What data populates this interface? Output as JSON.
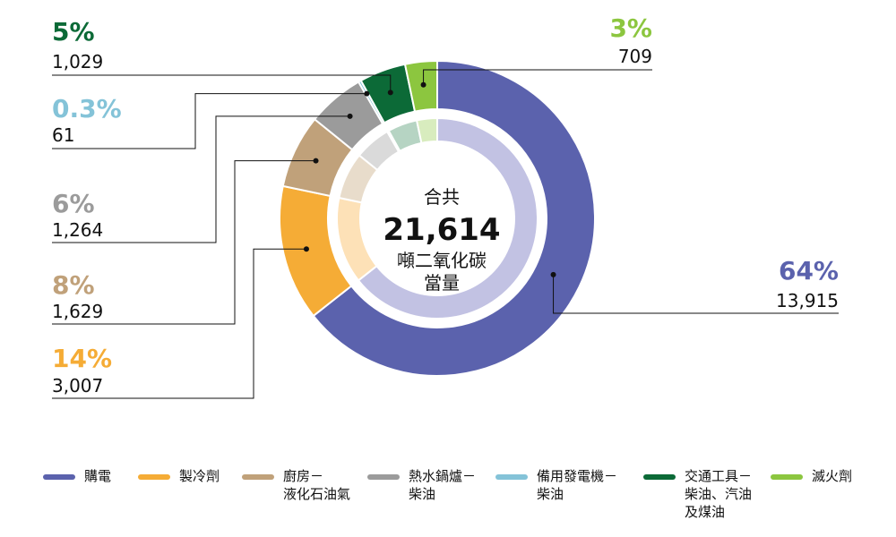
{
  "chart_data": {
    "type": "pie",
    "center": {
      "label_top": "合共",
      "total": "21,614",
      "label_bottom_1": "噸二氧化碳",
      "label_bottom_2": "當量"
    },
    "slices": [
      {
        "name": "購電",
        "value": 13915,
        "value_label": "13,915",
        "percent": "64%",
        "color": "#5b62ad",
        "inner_color": "#c2c2e3",
        "key": "purchased"
      },
      {
        "name": "製冷劑",
        "value": 3007,
        "value_label": "3,007",
        "percent": "14%",
        "color": "#f5ac36",
        "inner_color": "#fde1b7",
        "key": "refrigerant"
      },
      {
        "name": "廚房－\n液化石油氣",
        "value": 1629,
        "value_label": "1,629",
        "percent": "8%",
        "color": "#c0a17a",
        "inner_color": "#e8dccb",
        "key": "lpg"
      },
      {
        "name": "熱水鍋爐－\n柴油",
        "value": 1264,
        "value_label": "1,264",
        "percent": "6%",
        "color": "#9b9b9b",
        "inner_color": "#dadada",
        "key": "boiler"
      },
      {
        "name": "備用發電機－\n柴油",
        "value": 61,
        "value_label": "61",
        "percent": "0.3%",
        "color": "#84c3d8",
        "inner_color": "#cfe8f1",
        "key": "generator"
      },
      {
        "name": "交通工具－\n柴油、汽油\n及煤油",
        "value": 1029,
        "value_label": "1,029",
        "percent": "5%",
        "color": "#0c6a37",
        "inner_color": "#b6d4c3",
        "key": "transport"
      },
      {
        "name": "滅火劑",
        "value": 709,
        "value_label": "709",
        "percent": "3%",
        "color": "#8cc63f",
        "inner_color": "#d8ecbe",
        "key": "extinguisher"
      }
    ]
  }
}
